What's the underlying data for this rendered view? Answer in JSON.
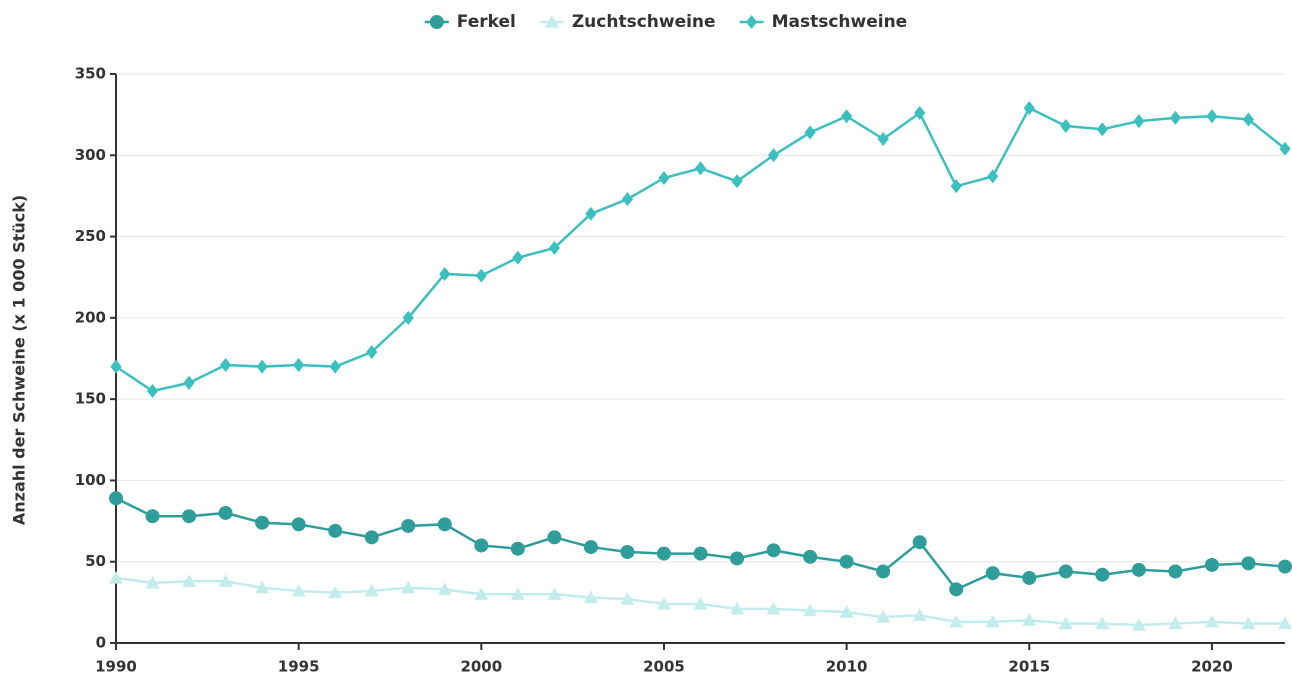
{
  "chart_data": {
    "type": "line",
    "y_label": "Anzahl der Schweine (x 1 000 Stück)",
    "x": [
      1990,
      1991,
      1992,
      1993,
      1994,
      1995,
      1996,
      1997,
      1998,
      1999,
      2000,
      2001,
      2002,
      2003,
      2004,
      2005,
      2006,
      2007,
      2008,
      2009,
      2010,
      2011,
      2012,
      2013,
      2014,
      2015,
      2016,
      2017,
      2018,
      2019,
      2020,
      2021,
      2022
    ],
    "series": [
      {
        "name": "Ferkel",
        "color": "#2f9e9a",
        "marker": "circle",
        "values": [
          89,
          78,
          78,
          80,
          74,
          73,
          69,
          65,
          72,
          73,
          60,
          58,
          65,
          59,
          56,
          55,
          55,
          52,
          57,
          53,
          50,
          44,
          62,
          33,
          43,
          40,
          44,
          42,
          45,
          44,
          48,
          49,
          47
        ]
      },
      {
        "name": "Zuchtschweine",
        "color": "#c3ecec",
        "marker": "triangle",
        "values": [
          40,
          37,
          38,
          38,
          34,
          32,
          31,
          32,
          34,
          33,
          30,
          30,
          30,
          28,
          27,
          24,
          24,
          21,
          21,
          20,
          19,
          16,
          17,
          13,
          13,
          14,
          12,
          12,
          11,
          12,
          13,
          12,
          12
        ]
      },
      {
        "name": "Mastschweine",
        "color": "#3cbfbf",
        "marker": "diamond",
        "values": [
          170,
          155,
          160,
          171,
          170,
          171,
          170,
          179,
          200,
          227,
          226,
          237,
          243,
          264,
          273,
          286,
          292,
          284,
          300,
          314,
          324,
          310,
          326,
          281,
          287,
          329,
          318,
          316,
          321,
          323,
          324,
          322,
          304
        ]
      }
    ],
    "xlim": [
      1990,
      2022
    ],
    "xticks": [
      1990,
      1995,
      2000,
      2005,
      2010,
      2015,
      2020
    ],
    "ylim": [
      0,
      350
    ],
    "yticks": [
      0,
      50,
      100,
      150,
      200,
      250,
      300,
      350
    ],
    "grid": true,
    "legend": "top"
  }
}
